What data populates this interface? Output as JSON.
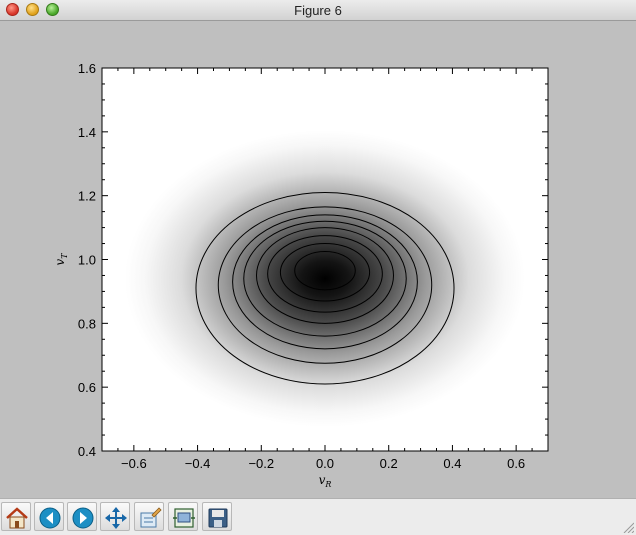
{
  "window": {
    "title": "Figure 6"
  },
  "chart_data": {
    "type": "contour",
    "title": "",
    "xlabel": "v_R",
    "ylabel": "v_T",
    "xlim": [
      -0.7,
      0.7
    ],
    "ylim": [
      0.4,
      1.6
    ],
    "xticks": [
      -0.6,
      -0.4,
      -0.2,
      0.0,
      0.2,
      0.4,
      0.6
    ],
    "xtick_labels": [
      "−0.6",
      "−0.4",
      "−0.2",
      "0.0",
      "0.2",
      "0.4",
      "0.6"
    ],
    "yticks": [
      0.4,
      0.6,
      0.8,
      1.0,
      1.2,
      1.4,
      1.6
    ],
    "ytick_labels": [
      "0.4",
      "0.6",
      "0.8",
      "1.0",
      "1.2",
      "1.4",
      "1.6"
    ],
    "colormap": "gray_r",
    "contours": [
      {
        "cx": 0.0,
        "cy": 0.91,
        "rx": 0.405,
        "ry": 0.3
      },
      {
        "cx": 0.0,
        "cy": 0.92,
        "rx": 0.335,
        "ry": 0.245
      },
      {
        "cx": 0.0,
        "cy": 0.93,
        "rx": 0.29,
        "ry": 0.21
      },
      {
        "cx": 0.0,
        "cy": 0.94,
        "rx": 0.255,
        "ry": 0.18
      },
      {
        "cx": 0.0,
        "cy": 0.95,
        "rx": 0.215,
        "ry": 0.15
      },
      {
        "cx": 0.0,
        "cy": 0.955,
        "rx": 0.18,
        "ry": 0.12
      },
      {
        "cx": 0.0,
        "cy": 0.96,
        "rx": 0.14,
        "ry": 0.09
      },
      {
        "cx": 0.0,
        "cy": 0.965,
        "rx": 0.095,
        "ry": 0.06
      }
    ],
    "density_peak": {
      "x": 0.0,
      "y": 0.97
    }
  },
  "toolbar": {
    "buttons": [
      {
        "name": "home-button",
        "icon": "home-icon"
      },
      {
        "name": "back-button",
        "icon": "back-arrow-icon"
      },
      {
        "name": "forward-button",
        "icon": "forward-arrow-icon"
      },
      {
        "name": "pan-button",
        "icon": "pan-icon"
      },
      {
        "name": "zoom-button",
        "icon": "zoom-rect-icon"
      },
      {
        "name": "subplots-button",
        "icon": "subplots-icon"
      },
      {
        "name": "save-button",
        "icon": "save-icon"
      }
    ]
  }
}
